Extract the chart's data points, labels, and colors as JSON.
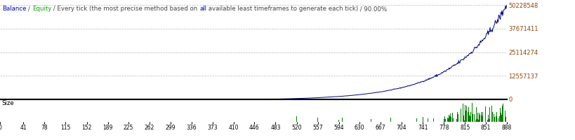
{
  "title_parts": [
    {
      "text": "Balance",
      "color": "#0000CC"
    },
    {
      "text": " / ",
      "color": "#444444"
    },
    {
      "text": "Equity",
      "color": "#00AA00"
    },
    {
      "text": " / Every tick (the most precise method based on ",
      "color": "#444444"
    },
    {
      "text": "all",
      "color": "#0000CC"
    },
    {
      "text": " available least timeframes to generate each tick)",
      "color": "#444444"
    },
    {
      "text": " / 90.00%",
      "color": "#444444"
    }
  ],
  "x_ticks": [
    0,
    41,
    78,
    115,
    152,
    189,
    225,
    262,
    299,
    336,
    373,
    410,
    446,
    483,
    520,
    557,
    594,
    630,
    667,
    704,
    741,
    778,
    815,
    851,
    888
  ],
  "y_ticks_main": [
    0,
    12557137,
    25114274,
    37671411,
    50228548
  ],
  "size_label": "Size",
  "background_color": "#FFFFFF",
  "grid_color": "#BBBBBB",
  "balance_color": "#00008B",
  "size_bar_color": "#008000",
  "x_min": 0,
  "x_max": 888,
  "y_min": 0,
  "y_max": 50228548,
  "y_axis_color": "#8B4500"
}
